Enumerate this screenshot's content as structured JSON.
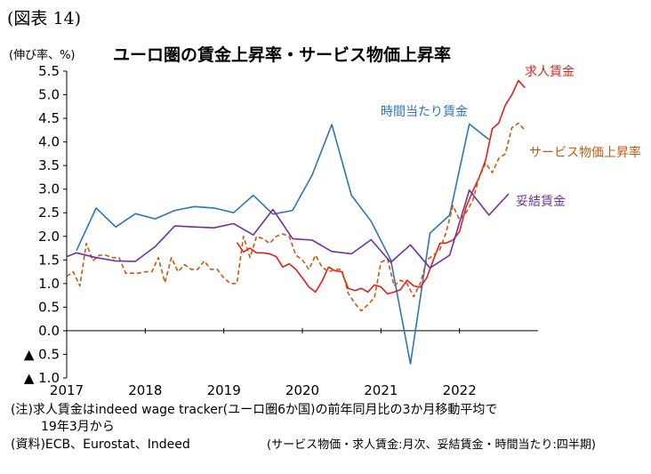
{
  "header": {
    "figure_label": "(図表 14)",
    "title": "ユーロ圏の賃金上昇率・サービス物価上昇率",
    "unit": "(伸び率、%)"
  },
  "notes": {
    "note1": "(注)求人賃金はindeed wage tracker(ユーロ圏6か国)の前年同月比の3か月移動平均で",
    "note2": "19年3月から",
    "source": "(資料)ECB、Eurostat、Indeed",
    "freq": "(サービス物価・求人賃金:月次、妥結賃金・時間当たり:四半期)"
  },
  "chart_data": {
    "type": "line",
    "ylim": [
      -1.0,
      5.5
    ],
    "xlim": [
      2017.0,
      2023.0
    ],
    "yticks": [
      5.5,
      5.0,
      4.5,
      4.0,
      3.5,
      3.0,
      2.5,
      2.0,
      1.5,
      1.0,
      0.5,
      0.0,
      -0.5,
      -1.0
    ],
    "ytick_labels": [
      "5.5",
      "5.0",
      "4.5",
      "4.0",
      "3.5",
      "3.0",
      "2.5",
      "2.0",
      "1.5",
      "1.0",
      "0.5",
      "0.0",
      "▲ 0.5",
      "▲ 1.0"
    ],
    "xticks": [
      2017,
      2018,
      2019,
      2020,
      2021,
      2022
    ],
    "xtick_labels": [
      "2017",
      "2018",
      "2019",
      "2020",
      "2021",
      "2022"
    ],
    "grid": false,
    "series": [
      {
        "name": "時間当たり賃金",
        "color": "#2e75b6",
        "dash": false,
        "points": [
          [
            2017.125,
            1.7
          ],
          [
            2017.375,
            2.6
          ],
          [
            2017.625,
            2.2
          ],
          [
            2017.875,
            2.48
          ],
          [
            2018.125,
            2.37
          ],
          [
            2018.375,
            2.55
          ],
          [
            2018.625,
            2.63
          ],
          [
            2018.875,
            2.6
          ],
          [
            2019.125,
            2.5
          ],
          [
            2019.375,
            2.87
          ],
          [
            2019.625,
            2.47
          ],
          [
            2019.875,
            2.55
          ],
          [
            2020.125,
            3.3
          ],
          [
            2020.375,
            4.37
          ],
          [
            2020.625,
            2.87
          ],
          [
            2020.875,
            2.32
          ],
          [
            2021.125,
            1.5
          ],
          [
            2021.375,
            -0.7
          ],
          [
            2021.625,
            2.07
          ],
          [
            2021.875,
            2.45
          ],
          [
            2022.125,
            4.38
          ],
          [
            2022.375,
            4.05
          ]
        ]
      },
      {
        "name": "求人賃金",
        "color": "#e0201f",
        "dash": false,
        "points": [
          [
            2019.167,
            1.87
          ],
          [
            2019.25,
            1.67
          ],
          [
            2019.333,
            1.75
          ],
          [
            2019.417,
            1.65
          ],
          [
            2019.5,
            1.65
          ],
          [
            2019.583,
            1.63
          ],
          [
            2019.667,
            1.57
          ],
          [
            2019.75,
            1.35
          ],
          [
            2019.833,
            1.42
          ],
          [
            2019.917,
            1.3
          ],
          [
            2020.0,
            1.12
          ],
          [
            2020.083,
            0.93
          ],
          [
            2020.167,
            0.82
          ],
          [
            2020.25,
            1.05
          ],
          [
            2020.333,
            1.35
          ],
          [
            2020.417,
            1.27
          ],
          [
            2020.5,
            1.25
          ],
          [
            2020.583,
            0.9
          ],
          [
            2020.667,
            0.85
          ],
          [
            2020.75,
            0.9
          ],
          [
            2020.833,
            0.82
          ],
          [
            2020.917,
            0.97
          ],
          [
            2021.0,
            0.93
          ],
          [
            2021.083,
            0.78
          ],
          [
            2021.167,
            0.82
          ],
          [
            2021.25,
            0.87
          ],
          [
            2021.333,
            1.07
          ],
          [
            2021.417,
            0.95
          ],
          [
            2021.5,
            0.92
          ],
          [
            2021.583,
            1.12
          ],
          [
            2021.667,
            1.5
          ],
          [
            2021.75,
            1.85
          ],
          [
            2021.833,
            1.86
          ],
          [
            2021.917,
            1.92
          ],
          [
            2022.0,
            2.1
          ],
          [
            2022.083,
            2.62
          ],
          [
            2022.167,
            2.95
          ],
          [
            2022.25,
            3.25
          ],
          [
            2022.333,
            3.62
          ],
          [
            2022.417,
            4.28
          ],
          [
            2022.5,
            4.4
          ],
          [
            2022.583,
            4.78
          ],
          [
            2022.667,
            5.0
          ],
          [
            2022.75,
            5.3
          ],
          [
            2022.833,
            5.15
          ]
        ]
      },
      {
        "name": "サービス物価上昇率",
        "color": "#c55a11",
        "dash": true,
        "points": [
          [
            2017.0,
            1.15
          ],
          [
            2017.083,
            1.25
          ],
          [
            2017.167,
            0.95
          ],
          [
            2017.25,
            1.85
          ],
          [
            2017.333,
            1.48
          ],
          [
            2017.417,
            1.6
          ],
          [
            2017.5,
            1.6
          ],
          [
            2017.583,
            1.55
          ],
          [
            2017.667,
            1.55
          ],
          [
            2017.75,
            1.22
          ],
          [
            2017.833,
            1.22
          ],
          [
            2017.917,
            1.22
          ],
          [
            2018.0,
            1.25
          ],
          [
            2018.083,
            1.25
          ],
          [
            2018.167,
            1.55
          ],
          [
            2018.25,
            1.02
          ],
          [
            2018.333,
            1.55
          ],
          [
            2018.417,
            1.25
          ],
          [
            2018.5,
            1.4
          ],
          [
            2018.583,
            1.3
          ],
          [
            2018.667,
            1.3
          ],
          [
            2018.75,
            1.48
          ],
          [
            2018.833,
            1.3
          ],
          [
            2018.917,
            1.3
          ],
          [
            2019.0,
            1.12
          ],
          [
            2019.083,
            1.0
          ],
          [
            2019.167,
            1.0
          ],
          [
            2019.25,
            2.0
          ],
          [
            2019.333,
            1.55
          ],
          [
            2019.417,
            2.0
          ],
          [
            2019.5,
            1.95
          ],
          [
            2019.583,
            1.85
          ],
          [
            2019.667,
            2.0
          ],
          [
            2019.75,
            2.05
          ],
          [
            2019.833,
            2.0
          ],
          [
            2019.917,
            1.6
          ],
          [
            2020.0,
            1.5
          ],
          [
            2020.083,
            1.3
          ],
          [
            2020.167,
            1.6
          ],
          [
            2020.25,
            1.35
          ],
          [
            2020.333,
            1.25
          ],
          [
            2020.417,
            1.3
          ],
          [
            2020.5,
            1.3
          ],
          [
            2020.583,
            0.8
          ],
          [
            2020.667,
            0.58
          ],
          [
            2020.75,
            0.42
          ],
          [
            2020.833,
            0.55
          ],
          [
            2020.917,
            0.7
          ],
          [
            2021.0,
            1.45
          ],
          [
            2021.083,
            1.52
          ],
          [
            2021.167,
            0.95
          ],
          [
            2021.25,
            1.07
          ],
          [
            2021.333,
            1.0
          ],
          [
            2021.417,
            0.72
          ],
          [
            2021.5,
            1.0
          ],
          [
            2021.583,
            1.5
          ],
          [
            2021.667,
            1.6
          ],
          [
            2021.75,
            1.72
          ],
          [
            2021.833,
            2.1
          ],
          [
            2021.917,
            2.65
          ],
          [
            2022.0,
            2.35
          ],
          [
            2022.083,
            2.5
          ],
          [
            2022.167,
            2.75
          ],
          [
            2022.25,
            3.25
          ],
          [
            2022.333,
            3.55
          ],
          [
            2022.417,
            3.35
          ],
          [
            2022.5,
            3.65
          ],
          [
            2022.583,
            3.75
          ],
          [
            2022.667,
            4.3
          ],
          [
            2022.75,
            4.4
          ],
          [
            2022.833,
            4.25
          ]
        ]
      },
      {
        "name": "妥結賃金",
        "color": "#7030a0",
        "dash": false,
        "points": [
          [
            2017.0,
            1.57
          ],
          [
            2017.125,
            1.65
          ],
          [
            2017.375,
            1.55
          ],
          [
            2017.625,
            1.48
          ],
          [
            2017.875,
            1.47
          ],
          [
            2018.125,
            1.78
          ],
          [
            2018.375,
            2.22
          ],
          [
            2018.625,
            2.2
          ],
          [
            2018.875,
            2.18
          ],
          [
            2019.125,
            2.27
          ],
          [
            2019.375,
            2.03
          ],
          [
            2019.625,
            2.57
          ],
          [
            2019.875,
            1.95
          ],
          [
            2020.125,
            1.92
          ],
          [
            2020.375,
            1.68
          ],
          [
            2020.625,
            1.63
          ],
          [
            2020.875,
            1.93
          ],
          [
            2021.125,
            1.45
          ],
          [
            2021.375,
            1.82
          ],
          [
            2021.625,
            1.33
          ],
          [
            2021.875,
            1.6
          ],
          [
            2022.125,
            2.98
          ],
          [
            2022.375,
            2.45
          ],
          [
            2022.625,
            2.9
          ]
        ]
      }
    ]
  }
}
